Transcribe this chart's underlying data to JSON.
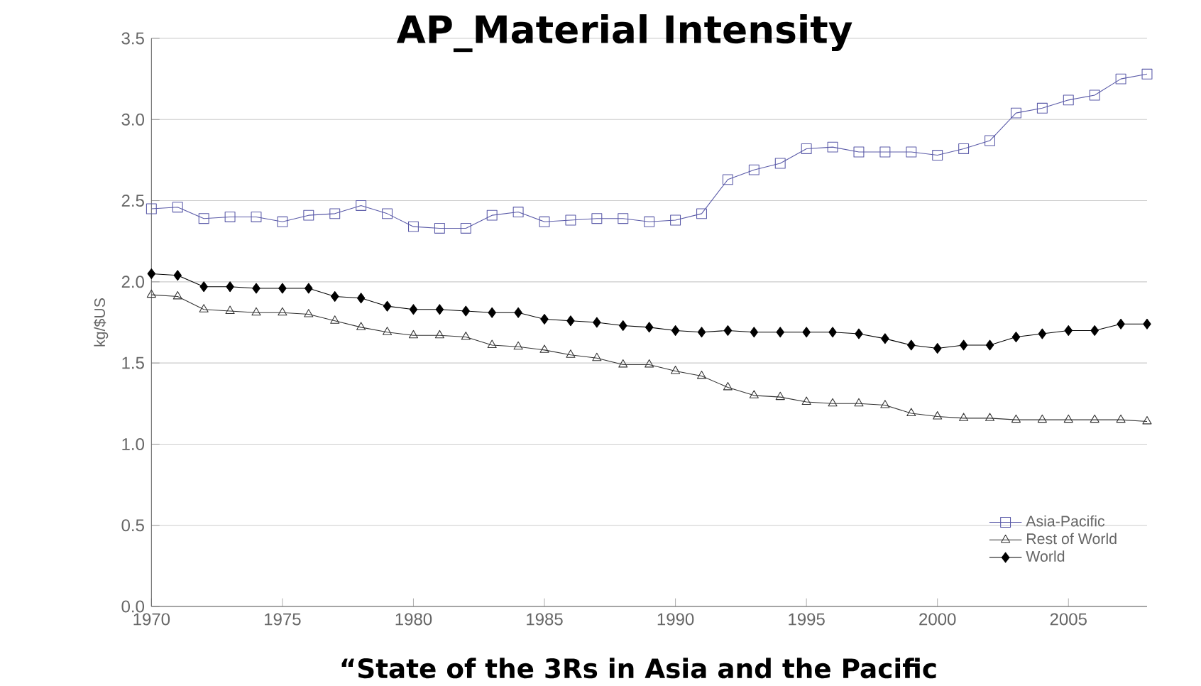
{
  "chart_data": {
    "type": "line",
    "title": "AP_Material Intensity",
    "ylabel": "kg/$US",
    "annotations": [
      "“State of the 3Rs in Asia and the Pacific"
    ],
    "x": [
      1970,
      1971,
      1972,
      1973,
      1974,
      1975,
      1976,
      1977,
      1978,
      1979,
      1980,
      1981,
      1982,
      1983,
      1984,
      1985,
      1986,
      1987,
      1988,
      1989,
      1990,
      1991,
      1992,
      1993,
      1994,
      1995,
      1996,
      1997,
      1998,
      1999,
      2000,
      2001,
      2002,
      2003,
      2004,
      2005,
      2006,
      2007,
      2008
    ],
    "series": [
      {
        "name": "Asia-Pacific",
        "color": "#5a5aa8",
        "marker": "square",
        "values": [
          2.45,
          2.46,
          2.39,
          2.4,
          2.4,
          2.37,
          2.41,
          2.42,
          2.47,
          2.42,
          2.34,
          2.33,
          2.33,
          2.41,
          2.43,
          2.37,
          2.38,
          2.39,
          2.39,
          2.37,
          2.38,
          2.42,
          2.63,
          2.69,
          2.73,
          2.82,
          2.83,
          2.8,
          2.8,
          2.8,
          2.78,
          2.82,
          2.87,
          3.04,
          3.07,
          3.12,
          3.15,
          3.25,
          3.28
        ]
      },
      {
        "name": "Rest of World",
        "color": "#333333",
        "marker": "triangle",
        "values": [
          1.92,
          1.91,
          1.83,
          1.82,
          1.81,
          1.81,
          1.8,
          1.76,
          1.72,
          1.69,
          1.67,
          1.67,
          1.66,
          1.61,
          1.6,
          1.58,
          1.55,
          1.53,
          1.49,
          1.49,
          1.45,
          1.42,
          1.35,
          1.3,
          1.29,
          1.26,
          1.25,
          1.25,
          1.24,
          1.19,
          1.17,
          1.16,
          1.16,
          1.15,
          1.15,
          1.15,
          1.15,
          1.15,
          1.14
        ]
      },
      {
        "name": "World",
        "color": "#000000",
        "marker": "diamond",
        "values": [
          2.05,
          2.04,
          1.97,
          1.97,
          1.96,
          1.96,
          1.96,
          1.91,
          1.9,
          1.85,
          1.83,
          1.83,
          1.82,
          1.81,
          1.81,
          1.77,
          1.76,
          1.75,
          1.73,
          1.72,
          1.7,
          1.69,
          1.7,
          1.69,
          1.69,
          1.69,
          1.69,
          1.68,
          1.65,
          1.61,
          1.59,
          1.61,
          1.61,
          1.66,
          1.68,
          1.7,
          1.7,
          1.74,
          1.74
        ]
      }
    ],
    "xlim": [
      1970,
      2008
    ],
    "xticks": [
      1970,
      1975,
      1980,
      1985,
      1990,
      1995,
      2000,
      2005
    ],
    "ylim": [
      0,
      3.5
    ],
    "yticks": [
      {
        "value": 0,
        "label": "0.0"
      },
      0.5,
      {
        "value": 1,
        "label": "1.0"
      },
      1.5,
      {
        "value": 2,
        "label": "2.0"
      },
      2.5,
      {
        "value": 3,
        "label": "3.0"
      },
      3.5
    ],
    "grid": "y",
    "legend": "bottom right"
  }
}
